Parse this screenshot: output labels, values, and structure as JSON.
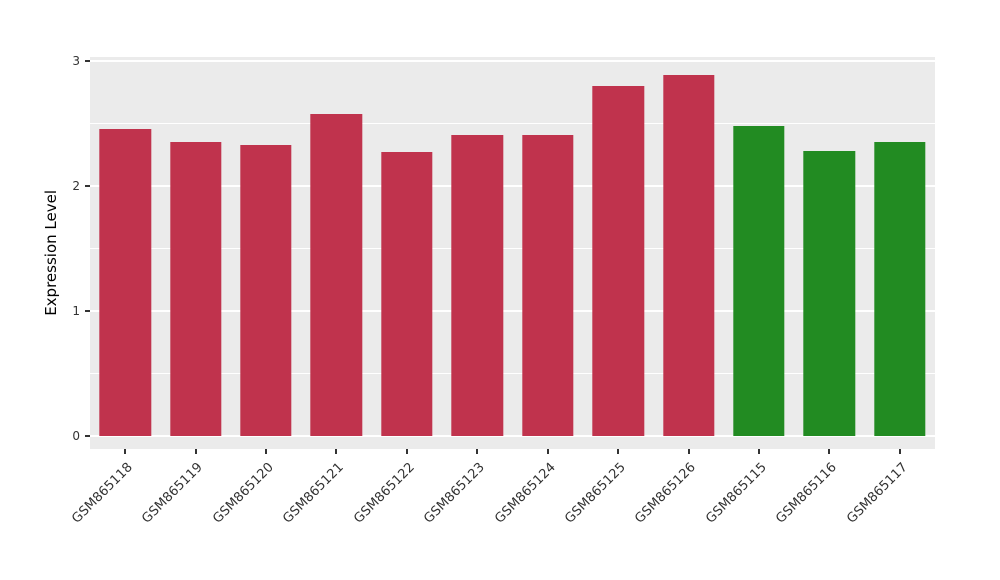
{
  "chart_data": {
    "type": "bar",
    "title": "",
    "xlabel": "",
    "ylabel": "Expression Level",
    "categories": [
      "GSM865118",
      "GSM865119",
      "GSM865120",
      "GSM865121",
      "GSM865122",
      "GSM865123",
      "GSM865124",
      "GSM865125",
      "GSM865126",
      "GSM865115",
      "GSM865116",
      "GSM865117"
    ],
    "values": [
      2.46,
      2.35,
      2.33,
      2.58,
      2.27,
      2.41,
      2.41,
      2.8,
      2.89,
      2.48,
      2.28,
      2.35
    ],
    "bar_colors": [
      "#C0334D",
      "#C0334D",
      "#C0334D",
      "#C0334D",
      "#C0334D",
      "#C0334D",
      "#C0334D",
      "#C0334D",
      "#C0334D",
      "#228B22",
      "#228B22",
      "#228B22"
    ],
    "palette": {
      "red_group": "#C0334D",
      "green_group": "#228B22"
    },
    "ylim": [
      0,
      3
    ],
    "yticks": [
      0,
      1,
      2,
      3
    ],
    "minor_gridlines": [
      0.5,
      1.5,
      2.5
    ],
    "panel_bg": "#EBEBEB",
    "grid_color": "#FFFFFF",
    "legend": "none",
    "x_label_angle_deg": 45
  }
}
